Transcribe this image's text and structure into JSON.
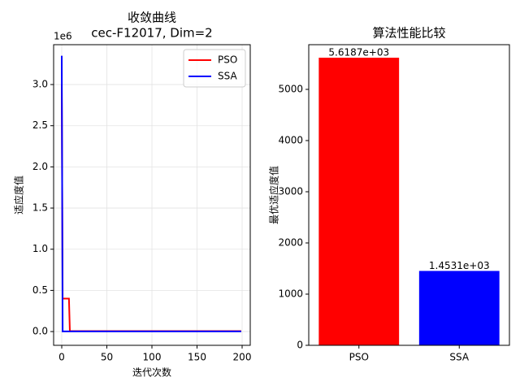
{
  "chart_data": [
    {
      "type": "line",
      "title": "收敛曲线",
      "subtitle": "cec-F12017, Dim=2",
      "x_label": "迭代次数",
      "y_label": "适应度值",
      "y_offset_label": "1e6",
      "x": [
        0,
        1,
        8,
        9,
        199
      ],
      "series": [
        {
          "name": "PSO",
          "color": "#ff0000",
          "values": [
            3000000,
            400000,
            400000,
            5618.7,
            5618.7
          ]
        },
        {
          "name": "SSA",
          "color": "#0000ff",
          "values": [
            3350000,
            1453.1,
            1453.1,
            1453.1,
            1453.1
          ]
        }
      ],
      "xlim": [
        -9,
        209
      ],
      "xticks": [
        0,
        50,
        100,
        150,
        200
      ],
      "ylim": [
        -167000,
        3484000
      ],
      "yticks": [
        {
          "value": 0,
          "label": "0.0"
        },
        {
          "value": 500000,
          "label": "0.5"
        },
        {
          "value": 1000000,
          "label": "1.0"
        },
        {
          "value": 1500000,
          "label": "1.5"
        },
        {
          "value": 2000000,
          "label": "2.0"
        },
        {
          "value": 2500000,
          "label": "2.5"
        },
        {
          "value": 3000000,
          "label": "3.0"
        }
      ],
      "grid": true,
      "legend": "upper right"
    },
    {
      "type": "bar",
      "title": "算法性能比较",
      "y_label": "最优适应度值",
      "categories": [
        "PSO",
        "SSA"
      ],
      "values": [
        5618.7,
        1453.1
      ],
      "value_labels": [
        "5.6187e+03",
        "1.4531e+03"
      ],
      "colors": [
        "#ff0000",
        "#0000ff"
      ],
      "ylim": [
        0,
        5873
      ],
      "yticks": [
        0,
        1000,
        2000,
        3000,
        4000,
        5000
      ],
      "grid": false
    }
  ]
}
